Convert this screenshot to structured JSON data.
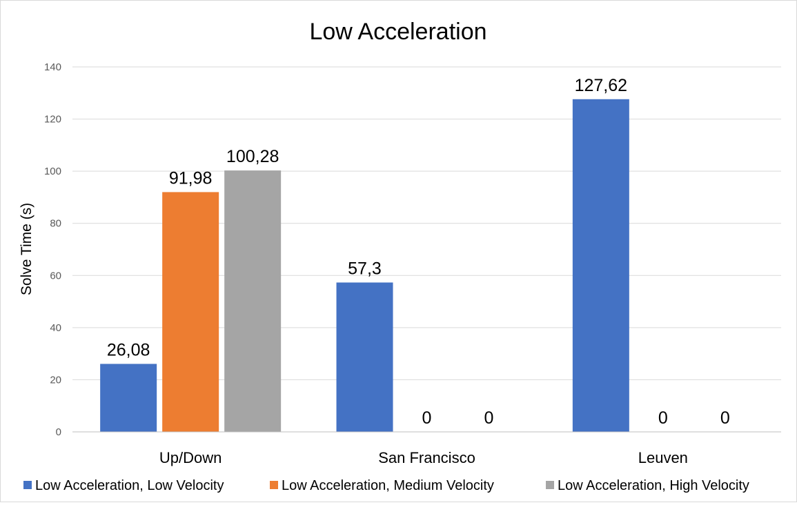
{
  "chart_data": {
    "type": "bar",
    "title": "Low Acceleration",
    "xlabel": "",
    "ylabel": "Solve Time (s)",
    "ylim": [
      0,
      140
    ],
    "yticks": [
      0,
      20,
      40,
      60,
      80,
      100,
      120,
      140
    ],
    "grid": true,
    "legend_position": "bottom",
    "categories": [
      "Up/Down",
      "San Francisco",
      "Leuven"
    ],
    "series": [
      {
        "name": "Low Acceleration, Low Velocity",
        "color": "#4472c4",
        "values": [
          26.08,
          57.3,
          127.62
        ],
        "labels": [
          "26,08",
          "57,3",
          "127,62"
        ]
      },
      {
        "name": "Low Acceleration, Medium Velocity",
        "color": "#ed7d31",
        "values": [
          91.98,
          0,
          0
        ],
        "labels": [
          "91,98",
          "0",
          "0"
        ]
      },
      {
        "name": "Low Acceleration, High Velocity",
        "color": "#a5a5a5",
        "values": [
          100.28,
          0,
          0
        ],
        "labels": [
          "100,28",
          "0",
          "0"
        ]
      }
    ]
  }
}
